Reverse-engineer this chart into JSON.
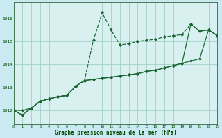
{
  "xlabel": "Graphe pression niveau de la mer (hPa)",
  "background_color": "#c8eaf0",
  "plot_bg_color": "#d8f0f0",
  "grid_color": "#a0d0c8",
  "line_color": "#1a6632",
  "x_values": [
    0,
    1,
    2,
    3,
    4,
    5,
    6,
    7,
    8,
    9,
    10,
    11,
    12,
    13,
    14,
    15,
    16,
    17,
    18,
    19,
    20,
    21,
    22,
    23
  ],
  "series1": [
    1012.0,
    1011.8,
    1012.1,
    1012.4,
    1012.5,
    1012.6,
    1012.65,
    1013.05,
    1013.3,
    1015.05,
    1016.25,
    1015.5,
    1014.85,
    1014.9,
    1015.0,
    1015.05,
    1015.1,
    1015.2,
    1015.25,
    1015.3,
    1015.75,
    1015.45,
    1015.5,
    1015.25
  ],
  "series2": [
    1012.0,
    1011.8,
    1012.1,
    1012.4,
    1012.5,
    1012.6,
    1012.65,
    1013.05,
    1013.3,
    1013.35,
    1013.4,
    1013.45,
    1013.5,
    1013.55,
    1013.6,
    1013.7,
    1013.75,
    1013.85,
    1013.95,
    1014.05,
    1015.75,
    1015.45,
    1015.5,
    1015.25
  ],
  "series3": [
    1012.0,
    1012.0,
    1012.1,
    1012.4,
    1012.5,
    1012.6,
    1012.65,
    1013.05,
    1013.3,
    1013.35,
    1013.4,
    1013.45,
    1013.5,
    1013.55,
    1013.6,
    1013.7,
    1013.75,
    1013.85,
    1013.95,
    1014.05,
    1014.15,
    1014.25,
    1015.5,
    1015.25
  ],
  "ylim": [
    1011.4,
    1016.7
  ],
  "yticks": [
    1012,
    1013,
    1014,
    1015,
    1016
  ],
  "xlim": [
    0,
    23
  ]
}
